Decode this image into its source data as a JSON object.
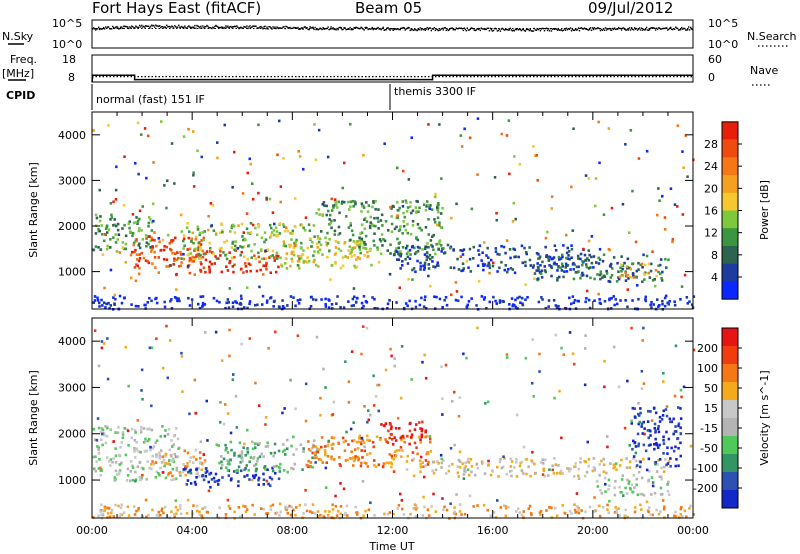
{
  "header": {
    "station": "Fort Hays East (fitACF)",
    "beam": "Beam 05",
    "date": "09/Jul/2012"
  },
  "sky_panel": {
    "left_label": "N.Sky",
    "right_label": "N.Search",
    "left_ticks": [
      "10^5",
      "10^0"
    ],
    "right_ticks": [
      "10^5",
      "10^0"
    ]
  },
  "freq_panel": {
    "left_label_line1": "Freq.",
    "left_label_line2": "[MHz]",
    "right_label": "Nave",
    "left_ticks": [
      "18",
      "8"
    ],
    "right_ticks": [
      "60",
      "0"
    ]
  },
  "cpid": {
    "label": "CPID",
    "segments": [
      {
        "name": "normal (fast) 151 IF",
        "start_hour": 0
      },
      {
        "name": "themis 3300 IF",
        "start_hour": 11.9
      }
    ]
  },
  "x_axis": {
    "title": "Time UT",
    "ticks": [
      "00:00",
      "04:00",
      "08:00",
      "12:00",
      "16:00",
      "20:00",
      "00:00"
    ],
    "range_hours": [
      0,
      24
    ]
  },
  "chart_data": [
    {
      "type": "line",
      "title": "N.Sky / N.Search",
      "series": [
        {
          "name": "N.Sky",
          "x": [
            0,
            1,
            2,
            4,
            6,
            8,
            10,
            12,
            14,
            16,
            18,
            20,
            22,
            24
          ],
          "values": [
            4000,
            6000,
            9000,
            8000,
            7000,
            5000,
            4000,
            3500,
            3000,
            2500,
            2500,
            3000,
            3500,
            4000
          ]
        },
        {
          "name": "N.Search",
          "x": [
            0,
            24
          ],
          "values": [
            3000,
            3000
          ]
        }
      ],
      "ylim": [
        1,
        100000
      ],
      "yscale": "log"
    },
    {
      "type": "line",
      "title": "Freq. / Nave",
      "series": [
        {
          "name": "Freq. [MHz]",
          "x": [
            0,
            0.03,
            1.7,
            1.7,
            11.9,
            11.9,
            13.6,
            13.6,
            24
          ],
          "values": [
            8,
            10.5,
            10.5,
            8.9,
            8.9,
            8.9,
            8.9,
            10.5,
            10.5
          ]
        },
        {
          "name": "Nave",
          "x": [
            0,
            24
          ],
          "values": [
            12,
            12
          ]
        }
      ],
      "ylim": [
        8,
        18
      ],
      "y2lim": [
        0,
        60
      ]
    },
    {
      "type": "heatmap",
      "title": "Power",
      "ylabel": "Slant Range [km]",
      "xlabel": "",
      "ylim": [
        180,
        4500
      ],
      "yticks": [
        1000,
        2000,
        3000,
        4000
      ],
      "colorbar": {
        "label": "Power [dB]",
        "ticks": [
          "4",
          "8",
          "12",
          "16",
          "20",
          "24",
          "28"
        ],
        "colors": [
          "#0a28ff",
          "#1e3ca0",
          "#2d6450",
          "#3c9641",
          "#7dc83c",
          "#f5c832",
          "#f5a01e",
          "#f57814",
          "#f04b0f",
          "#e61e0a"
        ]
      },
      "echo_regions": [
        {
          "t0": 0.0,
          "t1": 2.5,
          "r0": 1500,
          "r1": 2300,
          "level": 3
        },
        {
          "t0": 1.5,
          "t1": 4.5,
          "r0": 950,
          "r1": 1800,
          "level": 8
        },
        {
          "t0": 4.0,
          "t1": 7.5,
          "r0": 1000,
          "r1": 1500,
          "level": 9
        },
        {
          "t0": 3.5,
          "t1": 9.0,
          "r0": 1300,
          "r1": 2100,
          "level": 4
        },
        {
          "t0": 7.5,
          "t1": 11.5,
          "r0": 1100,
          "r1": 1700,
          "level": 5
        },
        {
          "t0": 9.0,
          "t1": 14.0,
          "r0": 1400,
          "r1": 2600,
          "level": 3
        },
        {
          "t0": 12.0,
          "t1": 20.0,
          "r0": 1000,
          "r1": 1600,
          "level": 1
        },
        {
          "t0": 17.5,
          "t1": 23.0,
          "r0": 800,
          "r1": 1400,
          "level": 2
        },
        {
          "t0": 21.0,
          "t1": 22.5,
          "r0": 900,
          "r1": 1200,
          "level": 6
        },
        {
          "t0": 0.0,
          "t1": 24.0,
          "r0": 200,
          "r1": 500,
          "level": 0
        }
      ]
    },
    {
      "type": "heatmap",
      "title": "Velocity",
      "ylabel": "Slant Range [km]",
      "xlabel": "Time UT",
      "ylim": [
        180,
        4500
      ],
      "yticks": [
        1000,
        2000,
        3000,
        4000
      ],
      "colorbar": {
        "label": "Velocity [m s^-1]",
        "ticks": [
          "200",
          "100",
          "50",
          "15",
          "-15",
          "-50",
          "-100",
          "-200"
        ],
        "colors": [
          "#1428c8",
          "#2d50b4",
          "#329664",
          "#50c85a",
          "#b4b4b4",
          "#c8c8c8",
          "#f5aa1e",
          "#f57814",
          "#f03c0f",
          "#e61414"
        ]
      },
      "echo_regions": [
        {
          "t0": 0.0,
          "t1": 3.5,
          "r0": 1000,
          "r1": 2200,
          "level": 4
        },
        {
          "t0": 2.0,
          "t1": 4.5,
          "r0": 1100,
          "r1": 1700,
          "level": 6
        },
        {
          "t0": 3.5,
          "t1": 7.5,
          "r0": 900,
          "r1": 1300,
          "level": 0
        },
        {
          "t0": 5.0,
          "t1": 9.0,
          "r0": 1200,
          "r1": 1900,
          "level": 3
        },
        {
          "t0": 8.5,
          "t1": 13.5,
          "r0": 1300,
          "r1": 2000,
          "level": 7
        },
        {
          "t0": 11.5,
          "t1": 13.5,
          "r0": 1800,
          "r1": 2300,
          "level": 9
        },
        {
          "t0": 12.5,
          "t1": 23.0,
          "r0": 1100,
          "r1": 1500,
          "level": 5
        },
        {
          "t0": 20.0,
          "t1": 23.0,
          "r0": 700,
          "r1": 1100,
          "level": 4
        },
        {
          "t0": 21.5,
          "t1": 23.5,
          "r0": 1300,
          "r1": 2600,
          "level": 0
        },
        {
          "t0": 0.0,
          "t1": 24.0,
          "r0": 200,
          "r1": 500,
          "level": 6
        }
      ]
    }
  ]
}
